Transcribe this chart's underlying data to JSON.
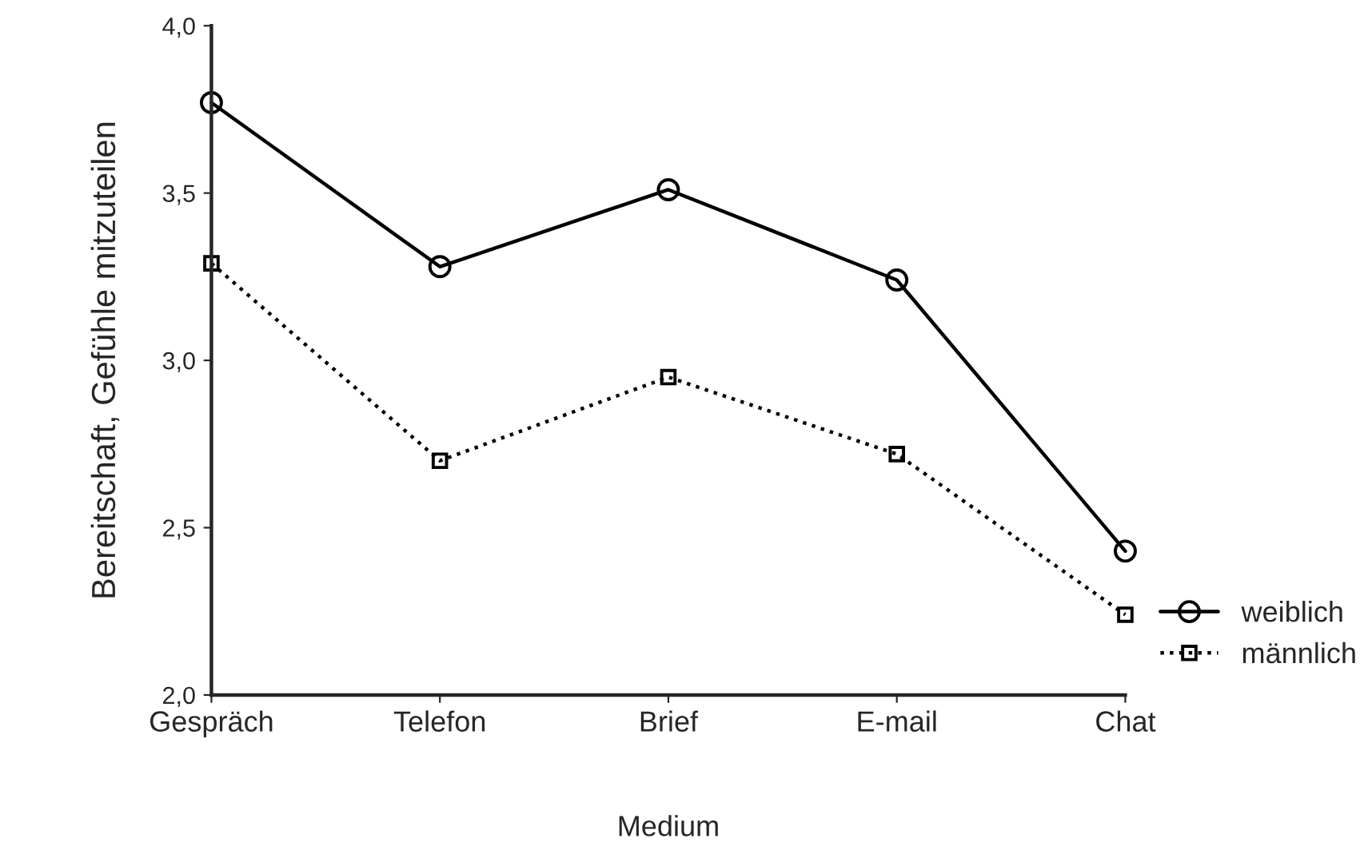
{
  "chart_data": {
    "type": "line",
    "xlabel": "Medium",
    "ylabel": "Bereitschaft, Gefühle mitzuteilen",
    "categories": [
      "Gespräch",
      "Telefon",
      "Brief",
      "E-mail",
      "Chat"
    ],
    "series": [
      {
        "name": "weiblich",
        "color": "#000000",
        "marker": "circle",
        "line_style": "solid",
        "values": [
          3.77,
          3.28,
          3.51,
          3.24,
          2.43
        ]
      },
      {
        "name": "männlich",
        "color": "#000000",
        "marker": "square",
        "line_style": "dotted",
        "values": [
          3.29,
          2.7,
          2.95,
          2.72,
          2.24
        ]
      }
    ],
    "ylim": [
      2.0,
      4.0
    ],
    "yticks": [
      {
        "value": 2.0,
        "label": "2,0"
      },
      {
        "value": 2.5,
        "label": "2,5"
      },
      {
        "value": 3.0,
        "label": "3,0"
      },
      {
        "value": 3.5,
        "label": "3,5"
      },
      {
        "value": 4.0,
        "label": "4,0"
      }
    ],
    "grid": false,
    "legend": "right"
  }
}
